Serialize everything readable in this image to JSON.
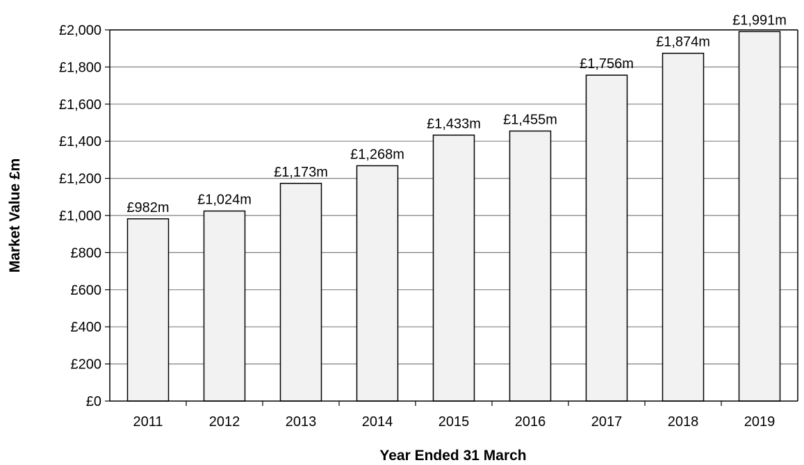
{
  "chart_data": {
    "type": "bar",
    "title": "",
    "xlabel": "Year Ended 31 March",
    "ylabel": "Market Value £m",
    "categories": [
      "2011",
      "2012",
      "2013",
      "2014",
      "2015",
      "2016",
      "2017",
      "2018",
      "2019"
    ],
    "values": [
      982,
      1024,
      1173,
      1268,
      1433,
      1455,
      1756,
      1874,
      1991
    ],
    "data_labels": [
      "£982m",
      "£1,024m",
      "£1,173m",
      "£1,268m",
      "£1,433m",
      "£1,455m",
      "£1,756m",
      "£1,874m",
      "£1,991m"
    ],
    "ylim": [
      0,
      2000
    ],
    "yticks": [
      0,
      200,
      400,
      600,
      800,
      1000,
      1200,
      1400,
      1600,
      1800,
      2000
    ],
    "ytick_labels": [
      "£0",
      "£200",
      "£400",
      "£600",
      "£800",
      "£1,000",
      "£1,200",
      "£1,400",
      "£1,600",
      "£1,800",
      "£2,000"
    ],
    "grid": true,
    "legend": "none",
    "colors": {
      "bar_fill": "#f2f2f2",
      "bar_stroke": "#000000",
      "grid": "#808080",
      "axis": "#000000"
    }
  }
}
